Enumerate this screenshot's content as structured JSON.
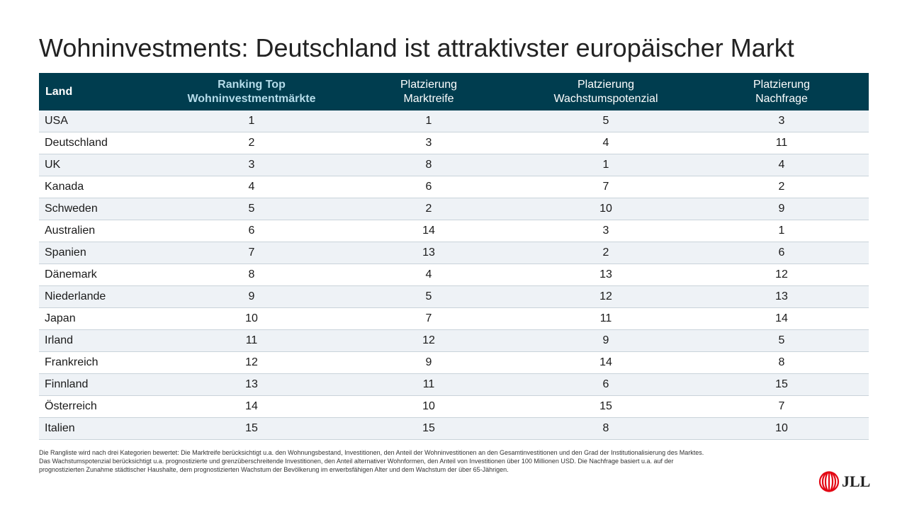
{
  "title": "Wohninvestments: Deutschland ist attraktivster europäischer Markt",
  "table": {
    "headers": {
      "land": "Land",
      "ranking_line1": "Ranking Top",
      "ranking_line2": "Wohninvestmentmärkte",
      "marktreife_line1": "Platzierung",
      "marktreife_line2": "Marktreife",
      "wachstum_line1": "Platzierung",
      "wachstum_line2": "Wachstumspotenzial",
      "nachfrage_line1": "Platzierung",
      "nachfrage_line2": "Nachfrage"
    },
    "rows": [
      {
        "land": "USA",
        "ranking": "1",
        "marktreife": "1",
        "wachstum": "5",
        "nachfrage": "3"
      },
      {
        "land": "Deutschland",
        "ranking": "2",
        "marktreife": "3",
        "wachstum": "4",
        "nachfrage": "11"
      },
      {
        "land": "UK",
        "ranking": "3",
        "marktreife": "8",
        "wachstum": "1",
        "nachfrage": "4"
      },
      {
        "land": "Kanada",
        "ranking": "4",
        "marktreife": "6",
        "wachstum": "7",
        "nachfrage": "2"
      },
      {
        "land": "Schweden",
        "ranking": "5",
        "marktreife": "2",
        "wachstum": "10",
        "nachfrage": "9"
      },
      {
        "land": "Australien",
        "ranking": "6",
        "marktreife": "14",
        "wachstum": "3",
        "nachfrage": "1"
      },
      {
        "land": "Spanien",
        "ranking": "7",
        "marktreife": "13",
        "wachstum": "2",
        "nachfrage": "6"
      },
      {
        "land": "Dänemark",
        "ranking": "8",
        "marktreife": "4",
        "wachstum": "13",
        "nachfrage": "12"
      },
      {
        "land": "Niederlande",
        "ranking": "9",
        "marktreife": "5",
        "wachstum": "12",
        "nachfrage": "13"
      },
      {
        "land": "Japan",
        "ranking": "10",
        "marktreife": "7",
        "wachstum": "11",
        "nachfrage": "14"
      },
      {
        "land": "Irland",
        "ranking": "11",
        "marktreife": "12",
        "wachstum": "9",
        "nachfrage": "5"
      },
      {
        "land": "Frankreich",
        "ranking": "12",
        "marktreife": "9",
        "wachstum": "14",
        "nachfrage": "8"
      },
      {
        "land": "Finnland",
        "ranking": "13",
        "marktreife": "11",
        "wachstum": "6",
        "nachfrage": "15"
      },
      {
        "land": "Österreich",
        "ranking": "14",
        "marktreife": "10",
        "wachstum": "15",
        "nachfrage": "7"
      },
      {
        "land": "Italien",
        "ranking": "15",
        "marktreife": "15",
        "wachstum": "8",
        "nachfrage": "10"
      }
    ]
  },
  "footnote": {
    "line1": "Die Rangliste wird nach drei Kategorien bewertet: Die Marktreife berücksichtigt u.a. den Wohnungsbestand, Investitionen, den Anteil der Wohninvestitionen an den Gesamtinvestitionen und den Grad der Institutionalisierung des Marktes.",
    "line2": "Das Wachstumspotenzial berücksichtigt u.a. prognostizierte und grenzüberschreitende Investitionen, den Anteil alternativer Wohnformen, den Anteil von Investitionen über 100 Millionen USD. Die Nachfrage basiert u.a. auf der",
    "line3": "prognostizierten Zunahme städtischer Haushalte, dem prognostizierten Wachstum der Bevölkerung im erwerbsfähigen Alter und dem Wachstum der über 65-Jährigen."
  },
  "logo": {
    "text": "JLL",
    "icon": "jll-logo-icon",
    "color": "#e30613"
  },
  "colors": {
    "header_bg": "#003d4f",
    "header_text": "#ffffff",
    "ranking_header_text": "#b5dcea",
    "row_stripe": "#eef2f6"
  }
}
